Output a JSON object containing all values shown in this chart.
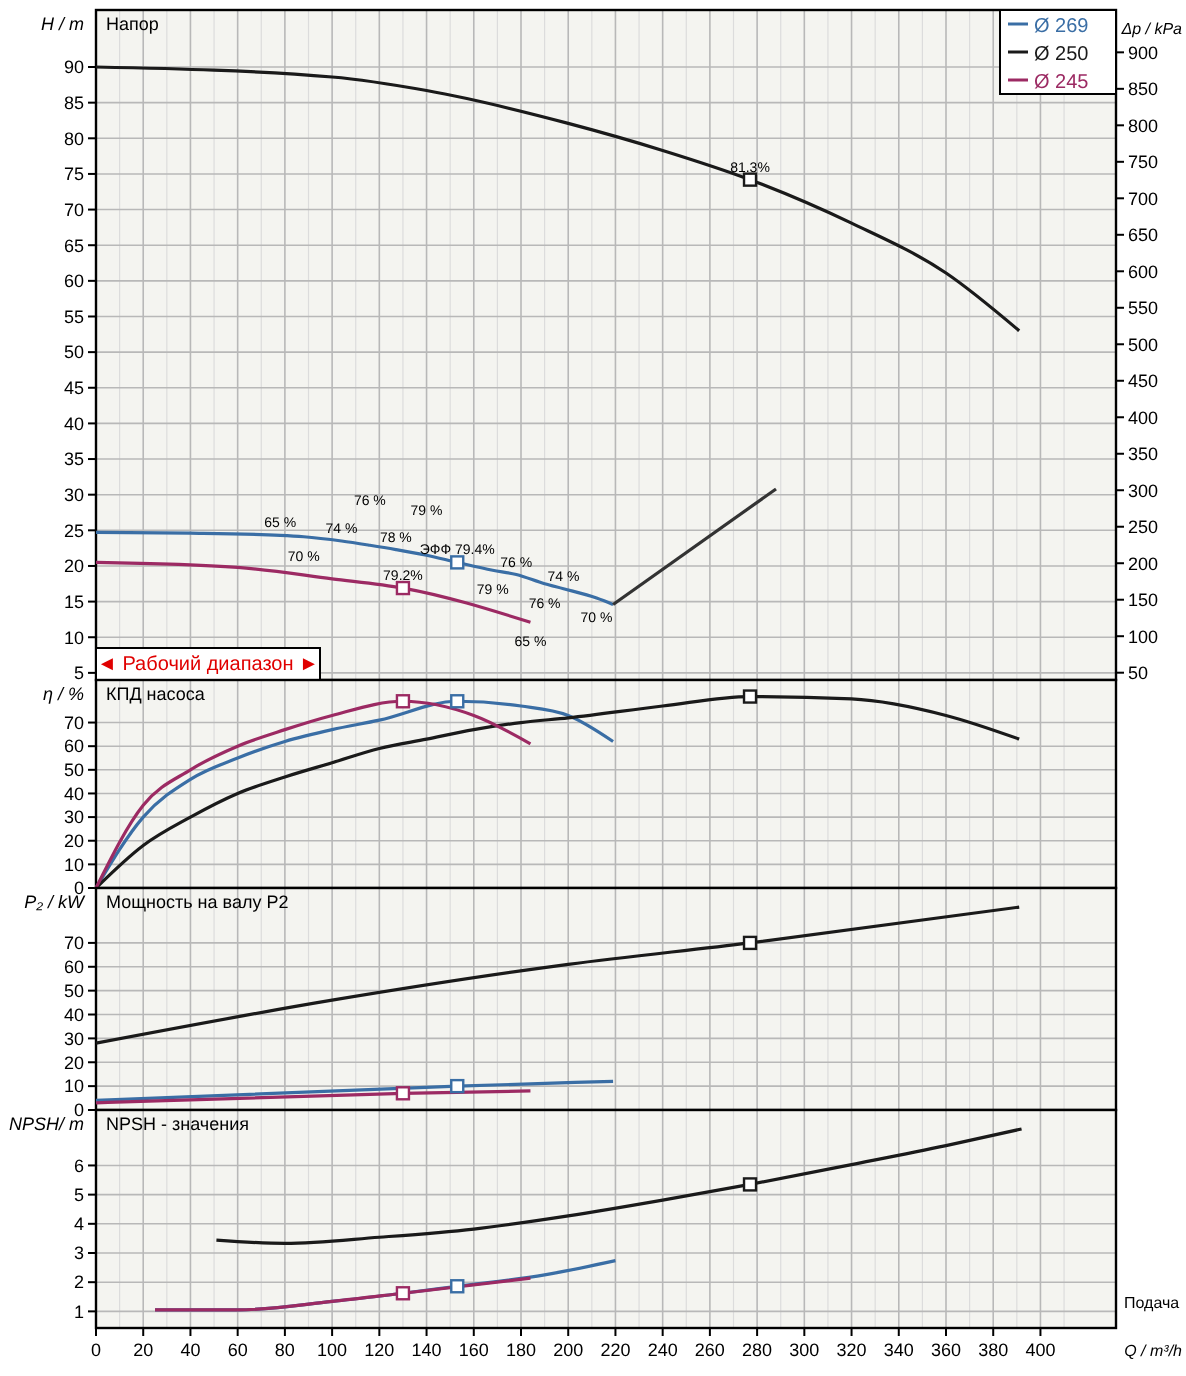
{
  "chart_data": [
    {
      "type": "line",
      "title": "Напор",
      "ylabel": "H / m",
      "y2label": "Δp / kPa",
      "xlim": [
        0,
        432
      ],
      "xticks": [
        0,
        20,
        40,
        60,
        80,
        100,
        120,
        140,
        160,
        180,
        200,
        220,
        240,
        260,
        280,
        300,
        320,
        340,
        360,
        380,
        400
      ],
      "ylim": [
        4,
        98
      ],
      "yticks": [
        5,
        10,
        15,
        20,
        25,
        30,
        35,
        40,
        45,
        50,
        55,
        60,
        65,
        70,
        75,
        80,
        85,
        90
      ],
      "y2lim": [
        40,
        958
      ],
      "y2ticks": [
        50,
        100,
        150,
        200,
        250,
        300,
        350,
        400,
        450,
        500,
        550,
        600,
        650,
        700,
        750,
        800,
        850,
        900
      ],
      "grid": true,
      "legend": "top right",
      "tick_labels": "y",
      "series": [
        {
          "name": "Ø 269",
          "color": "#3a6ea5",
          "x": [
            0,
            40,
            78,
            88,
            104,
            116,
            127,
            140,
            153,
            168,
            178,
            190,
            198,
            212,
            219
          ],
          "values": [
            24.7,
            24.6,
            24.3,
            24.1,
            23.5,
            22.9,
            22.3,
            21.5,
            20.5,
            19.4,
            18.8,
            17.5,
            16.8,
            15.5,
            14.6
          ]
        },
        {
          "name": "Ø 250",
          "color": "#1a1a1a",
          "x": [
            0,
            100,
            140,
            200,
            240,
            277,
            320,
            360,
            391
          ],
          "values": [
            90,
            88.6,
            86.7,
            82.1,
            78.3,
            74.2,
            68.1,
            61.1,
            53
          ]
        },
        {
          "name": "Ø 245",
          "color": "#9c2a63",
          "x": [
            0,
            60,
            100,
            130,
            184
          ],
          "values": [
            20.5,
            19.8,
            18.2,
            16.9,
            12.1
          ]
        },
        {
          "color": "#333333",
          "x": [
            219,
            288
          ],
          "values": [
            14.6,
            30.8
          ]
        },
        {
          "type": "scatter",
          "marker": "square",
          "color": "#1a1a1a",
          "x": [
            277
          ],
          "values": [
            74.2
          ]
        },
        {
          "type": "scatter",
          "marker": "square",
          "color": "#3a6ea5",
          "x": [
            153
          ],
          "values": [
            20.5
          ]
        },
        {
          "type": "scatter",
          "marker": "square",
          "color": "#9c2a63",
          "x": [
            130
          ],
          "values": [
            16.9
          ]
        }
      ],
      "annotations": [
        "◄ Рабочий диапазон ►",
        {
          "text": "81.3%",
          "x": 277,
          "y": 74.2
        },
        {
          "text": "ЭФФ 79.4%",
          "x": 153,
          "y": 20.5
        },
        {
          "text": "79.2%",
          "x": 130,
          "y": 16.9
        },
        {
          "text": "65 %",
          "x": 78,
          "y": 24.3
        },
        {
          "text": "70 %",
          "x": 88,
          "y": 24.1
        },
        {
          "text": "74 %",
          "x": 104,
          "y": 23.5
        },
        {
          "text": "76 %",
          "x": 116,
          "y": 22.9
        },
        {
          "text": "78 %",
          "x": 127,
          "y": 22.3
        },
        {
          "text": "79 %",
          "x": 140,
          "y": 21.5
        },
        {
          "text": "79 %",
          "x": 168,
          "y": 19.4
        },
        {
          "text": "76 %",
          "x": 178,
          "y": 18.8
        },
        {
          "text": "76 %",
          "x": 190,
          "y": 17.5
        },
        {
          "text": "74 %",
          "x": 198,
          "y": 16.8
        },
        {
          "text": "70 %",
          "x": 212,
          "y": 15.5
        },
        {
          "text": "65 %",
          "x": 184,
          "y": 12.1
        }
      ]
    },
    {
      "type": "line",
      "title": "КПД насоса",
      "ylabel": "η / %",
      "xlim": [
        0,
        432
      ],
      "xticks": [
        0,
        20,
        40,
        60,
        80,
        100,
        120,
        140,
        160,
        180,
        200,
        220,
        240,
        260,
        280,
        300,
        320,
        340,
        360,
        380,
        400
      ],
      "ylim": [
        0,
        88
      ],
      "yticks": [
        0,
        10,
        20,
        30,
        40,
        50,
        60,
        70
      ],
      "grid": true,
      "tick_labels": "y",
      "series": [
        {
          "color": "#3a6ea5",
          "x": [
            0,
            20,
            40,
            60,
            80,
            100,
            120,
            153,
            180,
            200,
            219
          ],
          "values": [
            0,
            30,
            46,
            55,
            62,
            67,
            71,
            79,
            77,
            73,
            62
          ]
        },
        {
          "color": "#1a1a1a",
          "x": [
            0,
            20,
            40,
            60,
            80,
            100,
            120,
            140,
            160,
            180,
            200,
            240,
            277,
            320,
            360,
            391
          ],
          "values": [
            0,
            18,
            30,
            40,
            47,
            53,
            59,
            63,
            67,
            70,
            72,
            77,
            81,
            80,
            73,
            63
          ]
        },
        {
          "color": "#9c2a63",
          "x": [
            0,
            20,
            40,
            60,
            80,
            100,
            130,
            160,
            184
          ],
          "values": [
            0,
            35,
            50,
            60,
            67,
            73,
            79,
            73,
            61
          ]
        },
        {
          "type": "scatter",
          "marker": "square",
          "color": "#1a1a1a",
          "x": [
            277
          ],
          "values": [
            81
          ]
        },
        {
          "type": "scatter",
          "marker": "square",
          "color": "#3a6ea5",
          "x": [
            153
          ],
          "values": [
            79
          ]
        },
        {
          "type": "scatter",
          "marker": "square",
          "color": "#9c2a63",
          "x": [
            130
          ],
          "values": [
            79
          ]
        }
      ]
    },
    {
      "type": "line",
      "title": "Мощность на валу P2",
      "ylabel": "P₂ / kW",
      "xlim": [
        0,
        432
      ],
      "xticks": [
        0,
        20,
        40,
        60,
        80,
        100,
        120,
        140,
        160,
        180,
        200,
        220,
        240,
        260,
        280,
        300,
        320,
        340,
        360,
        380,
        400
      ],
      "ylim": [
        0,
        93
      ],
      "yticks": [
        0,
        10,
        20,
        30,
        40,
        50,
        60,
        70
      ],
      "grid": true,
      "tick_labels": "y",
      "series": [
        {
          "color": "#3a6ea5",
          "x": [
            0,
            153,
            219
          ],
          "values": [
            4,
            10,
            12
          ]
        },
        {
          "color": "#1a1a1a",
          "x": [
            0,
            100,
            200,
            277,
            391
          ],
          "values": [
            28,
            46,
            61,
            70,
            85
          ]
        },
        {
          "color": "#9c2a63",
          "x": [
            0,
            130,
            184
          ],
          "values": [
            3,
            7,
            8
          ]
        },
        {
          "type": "scatter",
          "marker": "square",
          "color": "#1a1a1a",
          "x": [
            277
          ],
          "values": [
            70
          ]
        },
        {
          "type": "scatter",
          "marker": "square",
          "color": "#3a6ea5",
          "x": [
            153
          ],
          "values": [
            10
          ]
        },
        {
          "type": "scatter",
          "marker": "square",
          "color": "#9c2a63",
          "x": [
            130
          ],
          "values": [
            7
          ]
        }
      ]
    },
    {
      "type": "line",
      "title": "NPSH - значения",
      "ylabel": "NPSH/ m",
      "xlabel": "Q / m³/h",
      "xlim": [
        0,
        432
      ],
      "xticks": [
        0,
        20,
        40,
        60,
        80,
        100,
        120,
        140,
        160,
        180,
        200,
        220,
        240,
        260,
        280,
        300,
        320,
        340,
        360,
        380,
        400
      ],
      "ylim": [
        0.43,
        7.9
      ],
      "yticks": [
        1,
        2,
        3,
        4,
        5,
        6
      ],
      "grid": true,
      "series": [
        {
          "color": "#3a6ea5",
          "x": [
            25,
            60,
            100,
            130,
            153,
            190,
            220
          ],
          "values": [
            1.05,
            1.05,
            1.34,
            1.62,
            1.86,
            2.25,
            2.74
          ]
        },
        {
          "color": "#1a1a1a",
          "x": [
            51,
            80,
            120,
            160,
            200,
            240,
            277,
            320,
            360,
            392
          ],
          "values": [
            3.44,
            3.33,
            3.54,
            3.82,
            4.27,
            4.81,
            5.35,
            6.03,
            6.68,
            7.25
          ]
        },
        {
          "color": "#9c2a63",
          "x": [
            25,
            60,
            100,
            130,
            184
          ],
          "values": [
            1.05,
            1.05,
            1.34,
            1.62,
            2.14
          ]
        },
        {
          "type": "scatter",
          "marker": "square",
          "color": "#1a1a1a",
          "x": [
            277
          ],
          "values": [
            5.35
          ]
        },
        {
          "type": "scatter",
          "marker": "square",
          "color": "#3a6ea5",
          "x": [
            153
          ],
          "values": [
            1.86
          ]
        },
        {
          "type": "scatter",
          "marker": "square",
          "color": "#9c2a63",
          "x": [
            130
          ],
          "values": [
            1.62
          ]
        }
      ],
      "annotations": [
        "Подача"
      ]
    }
  ]
}
